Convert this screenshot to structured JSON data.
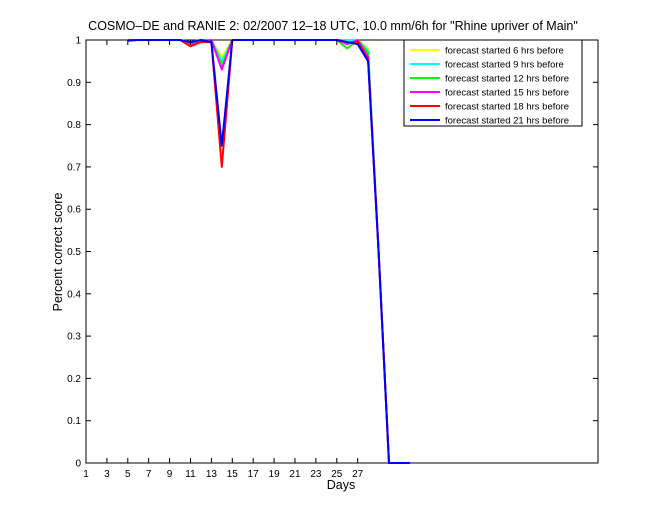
{
  "chart_data": {
    "type": "line",
    "title": "COSMO–DE and RANIE 2: 02/2007 12–18 UTC, 10.0 mm/6h for \"Rhine upriver of Main\"",
    "xlabel": "Days",
    "ylabel": "Percent correct score",
    "xlim": [
      1,
      50
    ],
    "ylim": [
      0,
      1
    ],
    "xticks": [
      1,
      3,
      5,
      7,
      9,
      11,
      13,
      15,
      17,
      19,
      21,
      23,
      25,
      27
    ],
    "yticks": [
      0,
      0.1,
      0.2,
      0.3,
      0.4,
      0.5,
      0.6,
      0.7,
      0.8,
      0.9,
      1
    ],
    "ytick_labels": [
      "0",
      "0.1",
      "0.2",
      "0.3",
      "0.4",
      "0.5",
      "0.6",
      "0.7",
      "0.8",
      "0.9",
      "1"
    ],
    "grid": false,
    "legend_position": "top-right",
    "x": [
      5,
      6,
      7,
      8,
      9,
      10,
      11,
      12,
      13,
      14,
      15,
      16,
      17,
      18,
      19,
      20,
      21,
      22,
      23,
      24,
      25,
      26,
      27,
      28,
      29,
      30,
      31,
      32
    ],
    "series": [
      {
        "name": "forecast started 6 hrs before",
        "color": "#ffff00",
        "values": [
          1,
          1,
          1,
          1,
          1,
          1,
          0.995,
          1,
          1,
          0.96,
          1,
          1,
          1,
          1,
          1,
          1,
          1,
          1,
          1,
          1,
          1,
          1,
          1,
          0.98,
          0.5,
          0,
          0,
          0
        ]
      },
      {
        "name": "forecast started 9 hrs before",
        "color": "#00ffff",
        "values": [
          1,
          1,
          1,
          1,
          1,
          1,
          0.995,
          1,
          1,
          0.95,
          1,
          1,
          1,
          1,
          1,
          1,
          1,
          1,
          1,
          1,
          1,
          1,
          1,
          0.975,
          0.5,
          0,
          0,
          0
        ]
      },
      {
        "name": "forecast started 12 hrs before",
        "color": "#00ff00",
        "values": [
          1,
          1,
          1,
          1,
          1,
          1,
          0.99,
          1,
          1,
          0.94,
          1,
          1,
          1,
          1,
          1,
          1,
          1,
          1,
          1,
          1,
          1,
          0.98,
          1,
          0.97,
          0.5,
          0,
          0,
          0
        ]
      },
      {
        "name": "forecast started 15 hrs before",
        "color": "#ff00ff",
        "values": [
          1,
          1,
          1,
          1,
          1,
          1,
          0.99,
          0.995,
          1,
          0.93,
          1,
          1,
          1,
          1,
          1,
          1,
          1,
          1,
          1,
          1,
          1,
          0.99,
          1,
          0.96,
          0.5,
          0,
          0,
          0
        ]
      },
      {
        "name": "forecast started 18 hrs before",
        "color": "#ff0000",
        "values": [
          1,
          1,
          1,
          1,
          1,
          1,
          0.985,
          0.995,
          0.995,
          0.7,
          1,
          1,
          1,
          1,
          1,
          1,
          1,
          1,
          1,
          1,
          1,
          0.995,
          0.995,
          0.955,
          0.5,
          0,
          0,
          0
        ]
      },
      {
        "name": "forecast started 21 hrs before",
        "color": "#0000ff",
        "values": [
          0.998,
          1,
          1,
          1,
          1,
          1,
          0.995,
          1,
          0.995,
          0.75,
          1,
          1,
          1,
          1,
          1,
          1,
          1,
          1,
          1,
          1,
          1,
          0.995,
          0.99,
          0.95,
          0.5,
          0,
          0,
          0
        ]
      }
    ]
  }
}
